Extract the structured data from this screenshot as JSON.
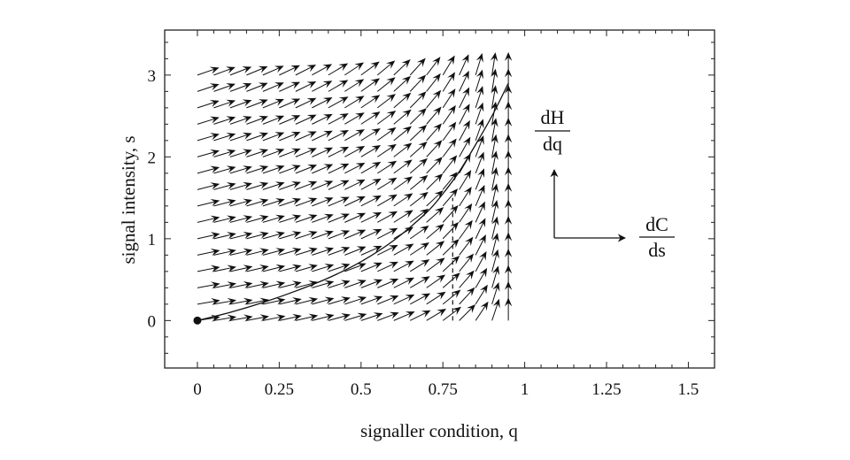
{
  "chart_data": {
    "type": "vector-field",
    "xlabel": "signaller condition, q",
    "ylabel": "signal intensity, s",
    "xlim": [
      -0.1,
      1.58
    ],
    "ylim": [
      -0.58,
      3.55
    ],
    "x_ticks": [
      "0",
      "0.25",
      "0.5",
      "0.75",
      "1",
      "1.25",
      "1.5"
    ],
    "x_tick_values": [
      0,
      0.25,
      0.5,
      0.75,
      1,
      1.25,
      1.5
    ],
    "y_ticks": [
      "0",
      "1",
      "2",
      "3"
    ],
    "y_tick_values": [
      0,
      1,
      2,
      3
    ],
    "grid": false,
    "field": {
      "x_range": [
        0,
        0.95
      ],
      "x_step": 0.05,
      "y_range": [
        0,
        3
      ],
      "y_step": 0.2,
      "arrow_direction": "approximately (0.95 − q, 0.15 + 0.06·s)",
      "arrow_color": "#111111"
    },
    "curve": {
      "points": [
        [
          0,
          0
        ],
        [
          0.1,
          0.1
        ],
        [
          0.2,
          0.22
        ],
        [
          0.3,
          0.36
        ],
        [
          0.4,
          0.52
        ],
        [
          0.5,
          0.72
        ],
        [
          0.6,
          0.98
        ],
        [
          0.7,
          1.32
        ],
        [
          0.75,
          1.55
        ],
        [
          0.8,
          1.82
        ],
        [
          0.85,
          2.15
        ],
        [
          0.9,
          2.5
        ],
        [
          0.95,
          2.9
        ]
      ],
      "start_marker": [
        0,
        0
      ]
    },
    "dashed_line": {
      "x": 0.78,
      "y_from": 0,
      "y_to": 1.5
    },
    "key": {
      "vertical_numerator": "dH",
      "vertical_denominator": "dq",
      "horizontal_numerator": "dC",
      "horizontal_denominator": "ds"
    }
  }
}
